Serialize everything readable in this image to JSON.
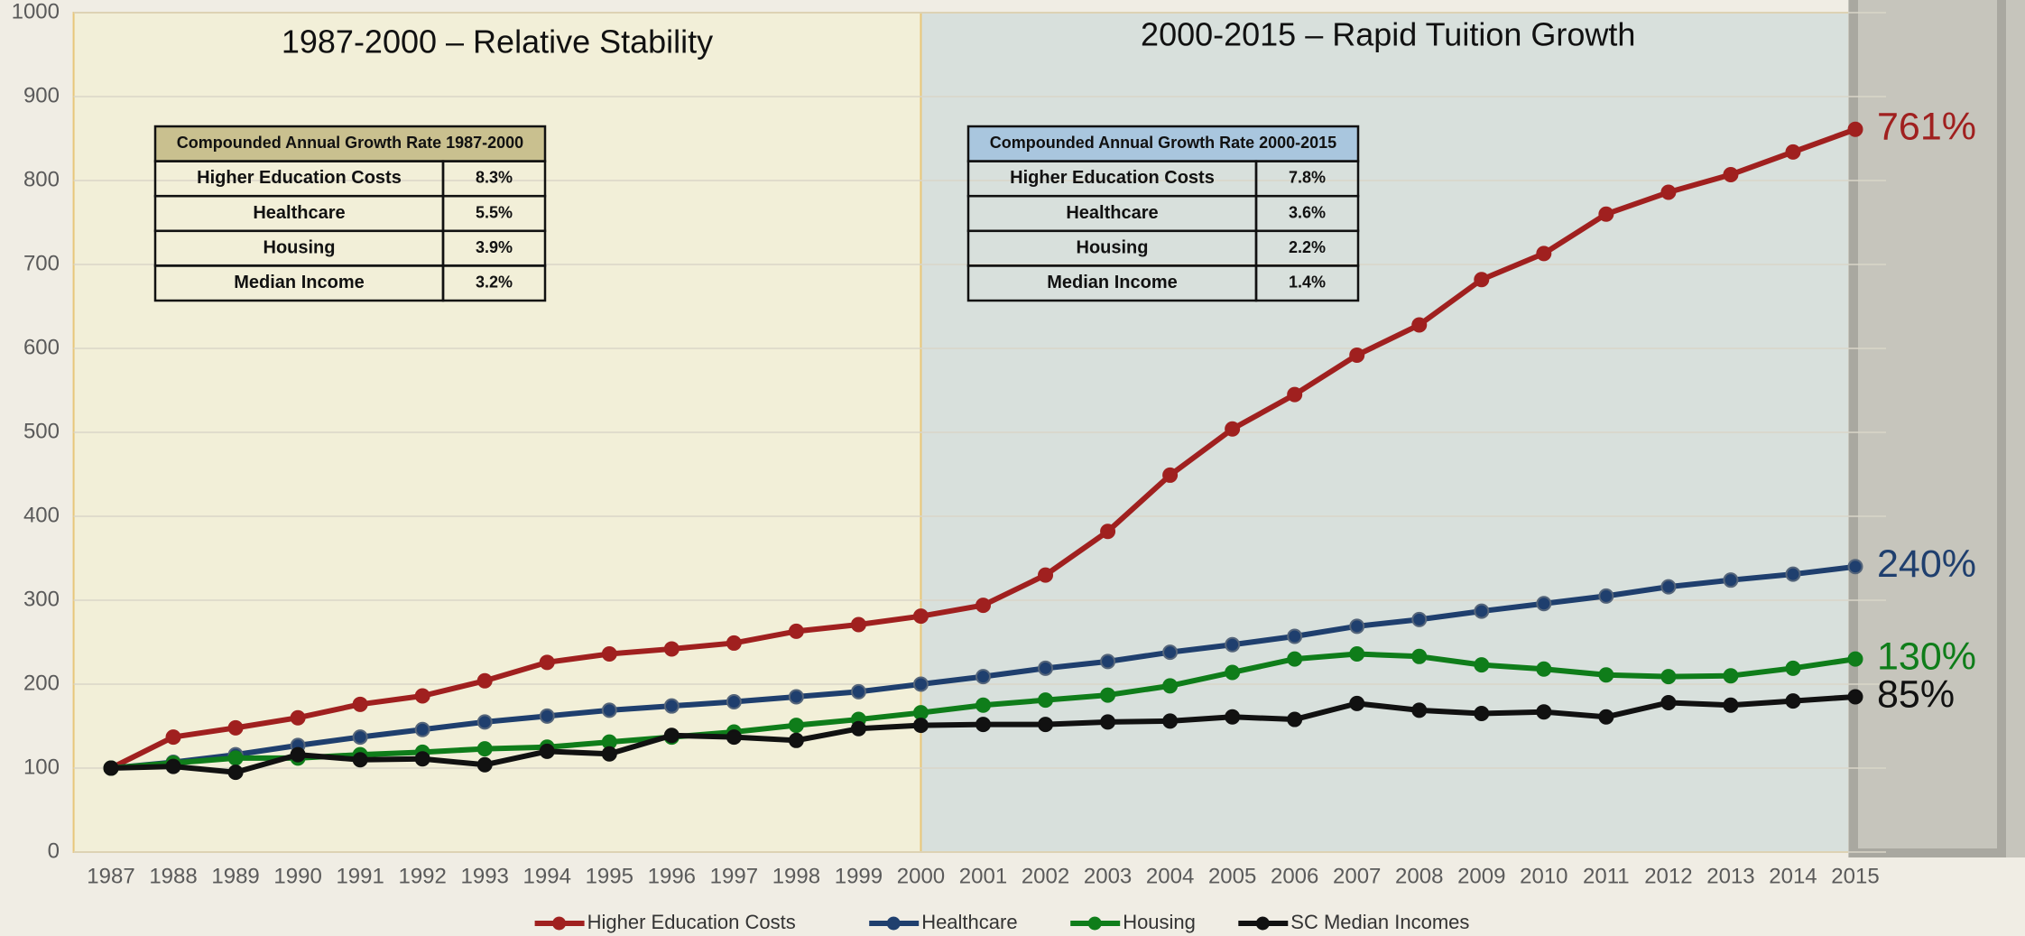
{
  "chart_data": {
    "type": "line",
    "categories": [
      "1987",
      "1988",
      "1989",
      "1990",
      "1991",
      "1992",
      "1993",
      "1994",
      "1995",
      "1996",
      "1997",
      "1998",
      "1999",
      "2000",
      "2001",
      "2002",
      "2003",
      "2004",
      "2005",
      "2006",
      "2007",
      "2008",
      "2009",
      "2010",
      "2011",
      "2012",
      "2013",
      "2014",
      "2015"
    ],
    "series": [
      {
        "name": "Higher Education Costs",
        "color": "#a0201f",
        "end_label": "761%",
        "values": [
          100,
          137,
          148,
          160,
          176,
          186,
          204,
          226,
          236,
          242,
          249,
          263,
          271,
          281,
          294,
          330,
          382,
          449,
          504,
          545,
          592,
          628,
          682,
          713,
          760,
          786,
          807,
          834,
          861
        ]
      },
      {
        "name": "Healthcare",
        "color": "#1f3f6e",
        "end_label": "240%",
        "values": [
          100,
          107,
          116,
          127,
          137,
          146,
          155,
          162,
          169,
          174,
          179,
          185,
          191,
          200,
          209,
          219,
          227,
          238,
          247,
          257,
          269,
          277,
          287,
          296,
          305,
          316,
          324,
          331,
          340
        ]
      },
      {
        "name": "Housing",
        "color": "#0f7d1a",
        "end_label": "130%",
        "values": [
          100,
          106,
          112,
          112,
          116,
          119,
          123,
          125,
          131,
          137,
          143,
          151,
          158,
          166,
          175,
          181,
          187,
          198,
          214,
          230,
          236,
          233,
          223,
          218,
          211,
          209,
          210,
          219,
          230
        ]
      },
      {
        "name": "SC Median Incomes",
        "color": "#111111",
        "end_label": "85%",
        "values": [
          100,
          102,
          95,
          116,
          110,
          111,
          104,
          120,
          117,
          139,
          137,
          133,
          147,
          151,
          152,
          152,
          155,
          156,
          161,
          158,
          177,
          169,
          165,
          167,
          161,
          178,
          175,
          180,
          185
        ]
      }
    ],
    "ylim": [
      0,
      1000
    ],
    "yticks": [
      0,
      100,
      200,
      300,
      400,
      500,
      600,
      700,
      800,
      900,
      1000
    ],
    "grid": true,
    "regions": [
      {
        "label": "1987-2000 – Relative Stability",
        "color": "#f2efd8",
        "span": [
          "1987",
          "2000"
        ]
      },
      {
        "label": "2000-2015 – Rapid Tuition Growth",
        "color": "#d8e0dc",
        "span": [
          "2000",
          "2015"
        ]
      }
    ],
    "tables": [
      {
        "title": "Compounded Annual Growth Rate 1987-2000",
        "header_color": "#c9c08f",
        "rows": [
          [
            "Higher Education Costs",
            "8.3%"
          ],
          [
            "Healthcare",
            "5.5%"
          ],
          [
            "Housing",
            "3.9%"
          ],
          [
            "Median Income",
            "3.2%"
          ]
        ]
      },
      {
        "title": "Compounded Annual Growth Rate 2000-2015",
        "header_color": "#a9c6de",
        "rows": [
          [
            "Higher Education Costs",
            "7.8%"
          ],
          [
            "Healthcare",
            "3.6%"
          ],
          [
            "Housing",
            "2.2%"
          ],
          [
            "Median Income",
            "1.4%"
          ]
        ]
      }
    ]
  }
}
